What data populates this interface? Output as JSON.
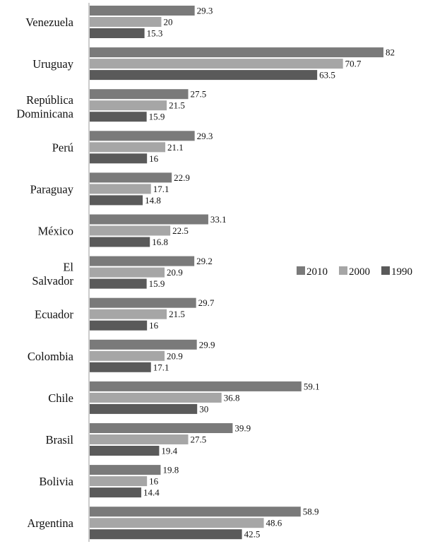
{
  "chart_data": {
    "type": "bar",
    "orientation": "horizontal",
    "categories": [
      "Venezuela",
      "Uruguay",
      "República Dominicana",
      "Perú",
      "Paraguay",
      "México",
      "El Salvador",
      "Ecuador",
      "Colombia",
      "Chile",
      "Brasil",
      "Bolivia",
      "Argentina"
    ],
    "series": [
      {
        "name": "2010",
        "color": "#7a7a7a",
        "values": [
          29.3,
          82,
          27.5,
          29.3,
          22.9,
          33.1,
          29.2,
          29.7,
          29.9,
          59.1,
          39.9,
          19.8,
          58.9
        ]
      },
      {
        "name": "2000",
        "color": "#a6a6a6",
        "values": [
          20,
          70.7,
          21.5,
          21.1,
          17.1,
          22.5,
          20.9,
          21.5,
          20.9,
          36.8,
          27.5,
          16,
          48.6
        ]
      },
      {
        "name": "1990",
        "color": "#5a5a5a",
        "values": [
          15.3,
          63.5,
          15.9,
          16,
          14.8,
          16.8,
          15.9,
          16,
          17.1,
          30,
          19.4,
          14.4,
          42.5
        ]
      }
    ],
    "xlim": [
      0,
      90
    ],
    "grid": false,
    "legend_position": "right"
  }
}
